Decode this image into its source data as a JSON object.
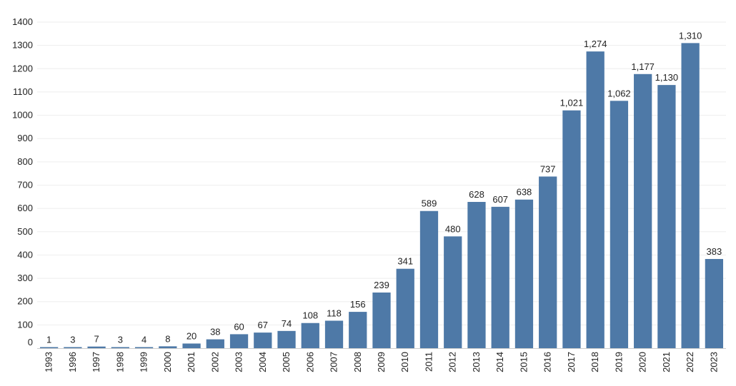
{
  "chart_data": {
    "type": "bar",
    "title": "",
    "xlabel": "",
    "ylabel": "",
    "categories": [
      "1993",
      "1996",
      "1997",
      "1998",
      "1999",
      "2000",
      "2001",
      "2002",
      "2003",
      "2004",
      "2005",
      "2006",
      "2007",
      "2008",
      "2009",
      "2010",
      "2011",
      "2012",
      "2013",
      "2014",
      "2015",
      "2016",
      "2017",
      "2018",
      "2019",
      "2020",
      "2021",
      "2022",
      "2023"
    ],
    "values": [
      1,
      3,
      7,
      3,
      4,
      8,
      20,
      38,
      60,
      67,
      74,
      108,
      118,
      156,
      239,
      341,
      589,
      480,
      628,
      607,
      638,
      737,
      1021,
      1274,
      1062,
      1177,
      1130,
      1310,
      383
    ],
    "value_labels": [
      "1",
      "3",
      "7",
      "3",
      "4",
      "8",
      "20",
      "38",
      "60",
      "67",
      "74",
      "108",
      "118",
      "156",
      "239",
      "341",
      "589",
      "480",
      "628",
      "607",
      "638",
      "737",
      "1,021",
      "1,274",
      "1,062",
      "1,177",
      "1,130",
      "1,310",
      "383"
    ],
    "ylim": [
      0,
      1400
    ],
    "yticks": [
      "0",
      "100",
      "200",
      "300",
      "400",
      "500",
      "600",
      "700",
      "800",
      "900",
      "1000",
      "1100",
      "1200",
      "1300",
      "1400"
    ],
    "grid": true,
    "legend": "none",
    "bar_color": "#4e79a7"
  }
}
